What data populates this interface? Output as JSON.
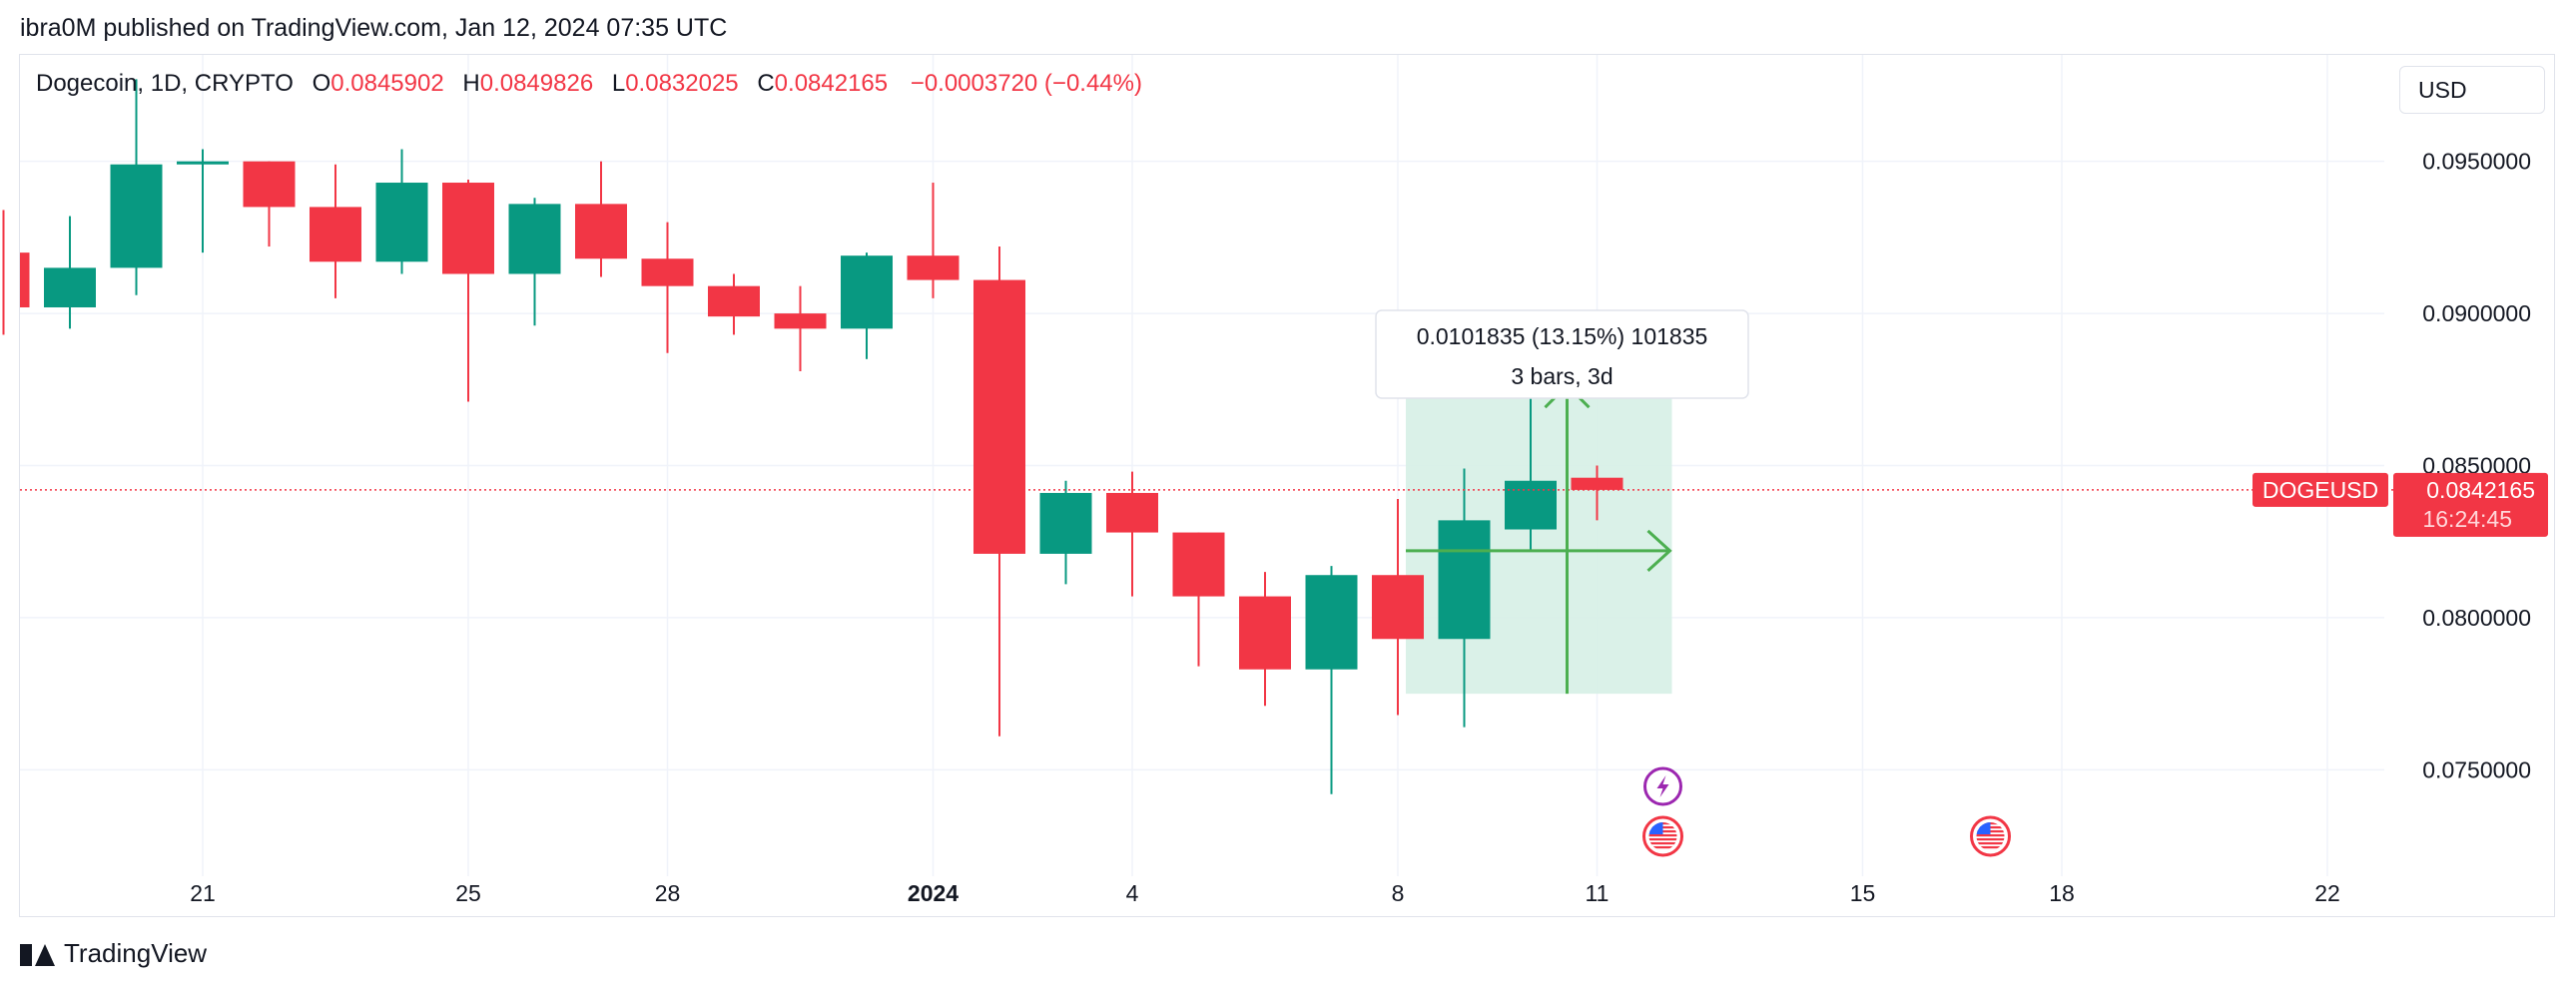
{
  "header": {
    "publish_line": "ibra0M published on TradingView.com, Jan 12, 2024 07:35 UTC"
  },
  "legend": {
    "symbol": "Dogecoin, 1D, CRYPTO",
    "open_label": "O",
    "open_value": "0.0845902",
    "high_label": "H",
    "high_value": "0.0849826",
    "low_label": "L",
    "low_value": "0.0832025",
    "close_label": "C",
    "close_value": "0.0842165",
    "change": "−0.0003720 (−0.44%)"
  },
  "currency_button": "USD",
  "footer": {
    "brand": "TradingView"
  },
  "colors": {
    "up": "#089981",
    "down": "#f23645",
    "grid": "#f0f3fa",
    "measure_fill": "#d6efe6",
    "measure_line": "#4caf50",
    "event_purple": "#9c27b0"
  },
  "chart_data": {
    "type": "candlestick",
    "symbol": "DOGEUSD",
    "ylim": [
      0.0715,
      0.0985
    ],
    "y_ticks": [
      0.075,
      0.08,
      0.085,
      0.09,
      0.095
    ],
    "y_tick_labels": [
      "0.0750000",
      "0.0800000",
      "0.0850000",
      "0.0900000",
      "0.0950000"
    ],
    "x_ticks": [
      {
        "date": "2023-12-21",
        "label": "21"
      },
      {
        "date": "2023-12-25",
        "label": "25"
      },
      {
        "date": "2023-12-28",
        "label": "28"
      },
      {
        "date": "2024-01-01",
        "label": "2024",
        "bold": true
      },
      {
        "date": "2024-01-04",
        "label": "4"
      },
      {
        "date": "2024-01-08",
        "label": "8"
      },
      {
        "date": "2024-01-11",
        "label": "11"
      },
      {
        "date": "2024-01-15",
        "label": "15"
      },
      {
        "date": "2024-01-18",
        "label": "18"
      },
      {
        "date": "2024-01-22",
        "label": "22"
      }
    ],
    "candles": [
      {
        "date": "2023-12-17",
        "open": 0.0928,
        "high": 0.0929,
        "low": 0.092,
        "close": 0.092
      },
      {
        "date": "2023-12-18",
        "open": 0.092,
        "high": 0.0934,
        "low": 0.0893,
        "close": 0.0902
      },
      {
        "date": "2023-12-19",
        "open": 0.0902,
        "high": 0.0932,
        "low": 0.0895,
        "close": 0.0915
      },
      {
        "date": "2023-12-20",
        "open": 0.0915,
        "high": 0.0977,
        "low": 0.0906,
        "close": 0.0949
      },
      {
        "date": "2023-12-21",
        "open": 0.0949,
        "high": 0.0954,
        "low": 0.092,
        "close": 0.095
      },
      {
        "date": "2023-12-22",
        "open": 0.095,
        "high": 0.095,
        "low": 0.0922,
        "close": 0.0935
      },
      {
        "date": "2023-12-23",
        "open": 0.0935,
        "high": 0.0949,
        "low": 0.0905,
        "close": 0.0917
      },
      {
        "date": "2023-12-24",
        "open": 0.0917,
        "high": 0.0954,
        "low": 0.0913,
        "close": 0.0943
      },
      {
        "date": "2023-12-25",
        "open": 0.0943,
        "high": 0.0944,
        "low": 0.0871,
        "close": 0.0913
      },
      {
        "date": "2023-12-26",
        "open": 0.0913,
        "high": 0.0938,
        "low": 0.0896,
        "close": 0.0936
      },
      {
        "date": "2023-12-27",
        "open": 0.0936,
        "high": 0.095,
        "low": 0.0912,
        "close": 0.0918
      },
      {
        "date": "2023-12-28",
        "open": 0.0918,
        "high": 0.093,
        "low": 0.0887,
        "close": 0.0909
      },
      {
        "date": "2023-12-29",
        "open": 0.0909,
        "high": 0.0913,
        "low": 0.0893,
        "close": 0.0899
      },
      {
        "date": "2023-12-30",
        "open": 0.09,
        "high": 0.0909,
        "low": 0.0881,
        "close": 0.0895
      },
      {
        "date": "2023-12-31",
        "open": 0.0895,
        "high": 0.092,
        "low": 0.0885,
        "close": 0.0919
      },
      {
        "date": "2024-01-01",
        "open": 0.0919,
        "high": 0.0943,
        "low": 0.0905,
        "close": 0.0911
      },
      {
        "date": "2024-01-02",
        "open": 0.0911,
        "high": 0.0922,
        "low": 0.0761,
        "close": 0.0821
      },
      {
        "date": "2024-01-03",
        "open": 0.0821,
        "high": 0.0845,
        "low": 0.0811,
        "close": 0.0841
      },
      {
        "date": "2024-01-04",
        "open": 0.0841,
        "high": 0.0848,
        "low": 0.0807,
        "close": 0.0828
      },
      {
        "date": "2024-01-05",
        "open": 0.0828,
        "high": 0.0828,
        "low": 0.0784,
        "close": 0.0807
      },
      {
        "date": "2024-01-06",
        "open": 0.0807,
        "high": 0.0815,
        "low": 0.0771,
        "close": 0.0783
      },
      {
        "date": "2024-01-07",
        "open": 0.0783,
        "high": 0.0817,
        "low": 0.0742,
        "close": 0.0814
      },
      {
        "date": "2024-01-08",
        "open": 0.0814,
        "high": 0.0839,
        "low": 0.0768,
        "close": 0.0793
      },
      {
        "date": "2024-01-09",
        "open": 0.0793,
        "high": 0.0849,
        "low": 0.0764,
        "close": 0.0832
      },
      {
        "date": "2024-01-10",
        "open": 0.0829,
        "high": 0.088,
        "low": 0.0822,
        "close": 0.0845
      },
      {
        "date": "2024-01-11",
        "open": 0.0846,
        "high": 0.085,
        "low": 0.0832,
        "close": 0.0842
      }
    ],
    "last_price": {
      "symbol": "DOGEUSD",
      "value": "0.0842165",
      "countdown": "16:24:45"
    },
    "measure": {
      "text": "0.0101835 (13.15%) 101835",
      "bars_text": "3 bars, 3d",
      "from_date": "2024-01-08",
      "to_date": "2024-01-11",
      "from_price": 0.0775,
      "to_price": 0.0877
    },
    "events": [
      {
        "date": "2024-01-11",
        "type": "lightning",
        "icon": "lightning-icon"
      },
      {
        "date": "2024-01-11",
        "type": "us-flag",
        "icon": "us-flag-icon"
      },
      {
        "date": "2024-01-17",
        "type": "us-flag",
        "icon": "us-flag-icon"
      }
    ]
  }
}
